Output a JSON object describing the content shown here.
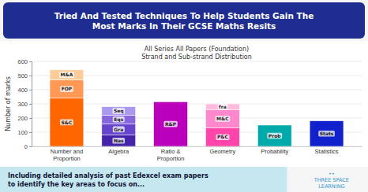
{
  "header": "Tried And Tested Techniques To Help Students Gain The\nMost Marks In Their GCSE Maths Resits",
  "footer": "Including detailed analysis of past Edexcel exam papers\nto identify the key areas to focus on...",
  "logo": "••\nTHREE SPACE\nLEARNING",
  "chart_data": {
    "type": "bar",
    "stacked": true,
    "title": "All Series All Papers (Foundation)\nStrand and Sub-strand Distribution",
    "y_label": "Number of marks",
    "categories": [
      "Number and Proportion",
      "Algebra",
      "Ratio & Proportion",
      "Geometry",
      "Probability",
      "Statistics"
    ],
    "stacks": [
      [
        {
          "label": "S&C",
          "value": 340,
          "color": "#ff6600"
        },
        {
          "label": "FOP",
          "value": 130,
          "color": "#ff9955"
        },
        {
          "label": "M&A",
          "value": 70,
          "color": "#ffcc99"
        }
      ],
      [
        {
          "label": "Nas",
          "value": 80,
          "color": "#4422aa"
        },
        {
          "label": "Gra",
          "value": 80,
          "color": "#6644cc"
        },
        {
          "label": "Eqs",
          "value": 60,
          "color": "#8866dd"
        },
        {
          "label": "Seq",
          "value": 60,
          "color": "#aa99ee"
        }
      ],
      [
        {
          "label": "R&P",
          "value": 315,
          "color": "#bb00bb"
        }
      ],
      [
        {
          "label": "P&C",
          "value": 130,
          "color": "#ff44aa"
        },
        {
          "label": "M&C",
          "value": 130,
          "color": "#ff88cc"
        },
        {
          "label": "fra",
          "value": 40,
          "color": "#ffbbdd"
        }
      ],
      [
        {
          "label": "Prob",
          "value": 150,
          "color": "#00aaaa"
        }
      ],
      [
        {
          "label": "Stats",
          "value": 180,
          "color": "#1122cc"
        }
      ]
    ],
    "ylim": [
      0,
      600
    ],
    "yticks": [
      0,
      100,
      200,
      300,
      400,
      500,
      600
    ],
    "grid": true
  }
}
